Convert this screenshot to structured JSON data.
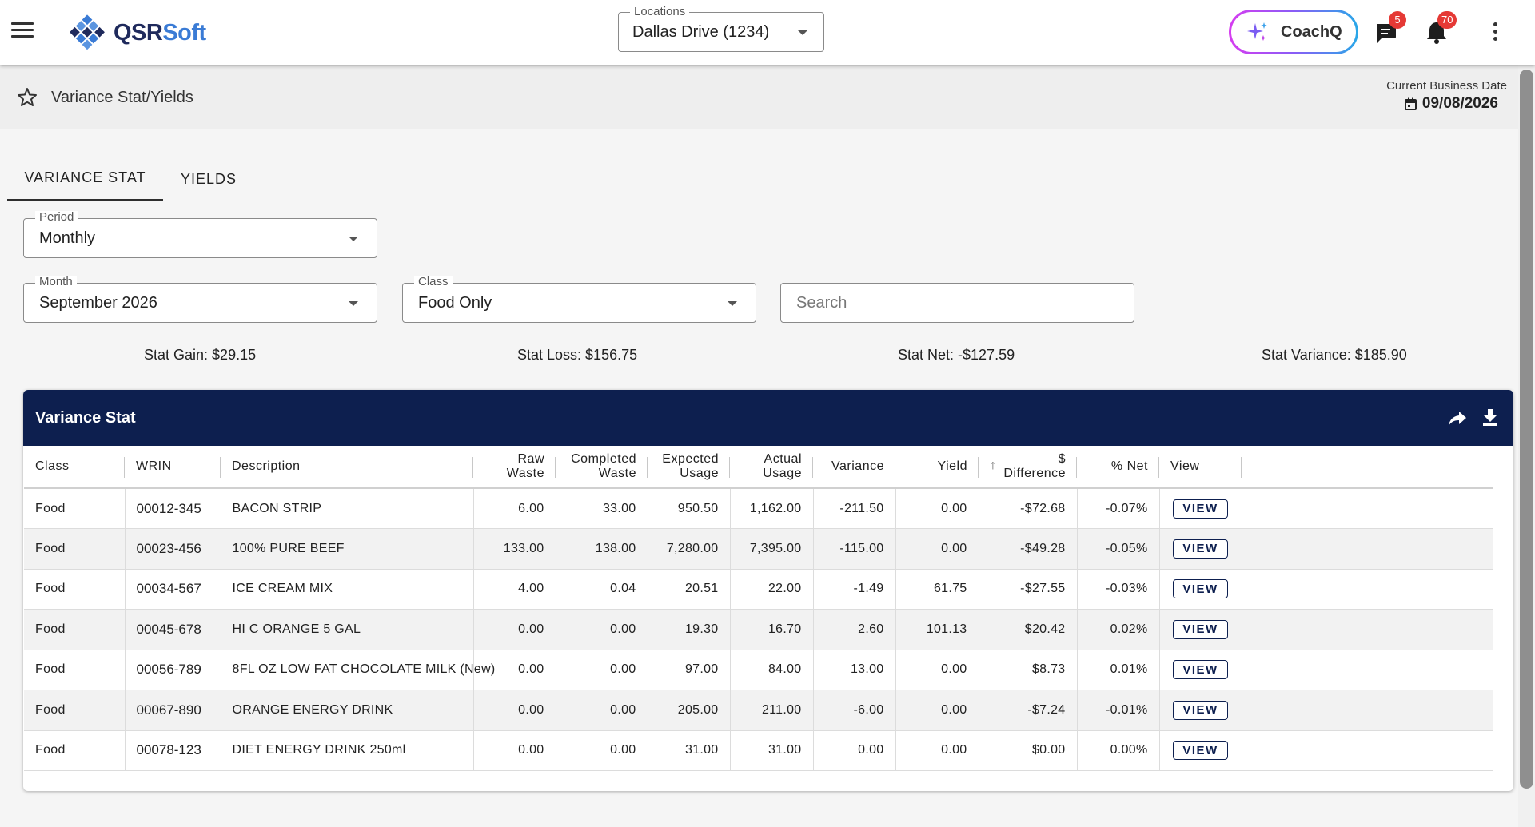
{
  "app": {
    "logo_part1": "QSR",
    "logo_part2": "Soft"
  },
  "header": {
    "locations_label": "Locations",
    "location_value": "Dallas Drive (1234)",
    "coachq_label": "CoachQ",
    "messages_count": "5",
    "notifications_count": "70"
  },
  "page": {
    "title": "Variance Stat/Yields",
    "business_date_label": "Current Business Date",
    "business_date": "09/08/2026"
  },
  "tabs": [
    {
      "label": "VARIANCE STAT",
      "active": true
    },
    {
      "label": "YIELDS",
      "active": false
    }
  ],
  "filters": {
    "period_label": "Period",
    "period_value": "Monthly",
    "month_label": "Month",
    "month_value": "September 2026",
    "class_label": "Class",
    "class_value": "Food Only",
    "search_placeholder": "Search"
  },
  "stats": {
    "gain": "Stat Gain: $29.15",
    "loss": "Stat Loss: $156.75",
    "net": "Stat Net: -$127.59",
    "variance": "Stat Variance: $185.90"
  },
  "table": {
    "title": "Variance Stat",
    "columns": {
      "class": "Class",
      "wrin": "WRIN",
      "description": "Description",
      "raw_waste": "Raw Waste",
      "completed_waste": "Completed Waste",
      "expected_usage": "Expected Usage",
      "actual_usage": "Actual Usage",
      "variance": "Variance",
      "yield": "Yield",
      "difference_symbol": "$",
      "difference": "Difference",
      "pct_net": "% Net",
      "view": "View"
    },
    "view_label": "VIEW",
    "rows": [
      {
        "class": "Food",
        "wrin": "00012-345",
        "description": "BACON STRIP",
        "raw_waste": "6.00",
        "completed_waste": "33.00",
        "expected_usage": "950.50",
        "actual_usage": "1,162.00",
        "variance": "-211.50",
        "yield": "0.00",
        "difference": "-$72.68",
        "pct_net": "-0.07%"
      },
      {
        "class": "Food",
        "wrin": "00023-456",
        "description": "100% PURE BEEF",
        "raw_waste": "133.00",
        "completed_waste": "138.00",
        "expected_usage": "7,280.00",
        "actual_usage": "7,395.00",
        "variance": "-115.00",
        "yield": "0.00",
        "difference": "-$49.28",
        "pct_net": "-0.05%"
      },
      {
        "class": "Food",
        "wrin": "00034-567",
        "description": "ICE CREAM MIX",
        "raw_waste": "4.00",
        "completed_waste": "0.04",
        "expected_usage": "20.51",
        "actual_usage": "22.00",
        "variance": "-1.49",
        "yield": "61.75",
        "difference": "-$27.55",
        "pct_net": "-0.03%"
      },
      {
        "class": "Food",
        "wrin": "00045-678",
        "description": "HI C ORANGE 5 GAL",
        "raw_waste": "0.00",
        "completed_waste": "0.00",
        "expected_usage": "19.30",
        "actual_usage": "16.70",
        "variance": "2.60",
        "yield": "101.13",
        "difference": "$20.42",
        "pct_net": "0.02%"
      },
      {
        "class": "Food",
        "wrin": "00056-789",
        "description": "8FL OZ LOW FAT CHOCOLATE MILK (New)",
        "raw_waste": "0.00",
        "completed_waste": "0.00",
        "expected_usage": "97.00",
        "actual_usage": "84.00",
        "variance": "13.00",
        "yield": "0.00",
        "difference": "$8.73",
        "pct_net": "0.01%"
      },
      {
        "class": "Food",
        "wrin": "00067-890",
        "description": "ORANGE ENERGY DRINK",
        "raw_waste": "0.00",
        "completed_waste": "0.00",
        "expected_usage": "205.00",
        "actual_usage": "211.00",
        "variance": "-6.00",
        "yield": "0.00",
        "difference": "-$7.24",
        "pct_net": "-0.01%"
      },
      {
        "class": "Food",
        "wrin": "00078-123",
        "description": "DIET ENERGY DRINK 250ml",
        "raw_waste": "0.00",
        "completed_waste": "0.00",
        "expected_usage": "31.00",
        "actual_usage": "31.00",
        "variance": "0.00",
        "yield": "0.00",
        "difference": "$0.00",
        "pct_net": "0.00%"
      }
    ]
  },
  "colors": {
    "navy": "#0d1f4f",
    "logo_blue": "#3a7bd5",
    "badge_red": "#e53935",
    "coachq_gradient": [
      "#d63cf0",
      "#8a5cf6",
      "#28a8e8"
    ]
  },
  "icons": {
    "menu": "hamburger-icon",
    "logo": "diamond-grid-logo",
    "coachq": "sparkle-icon",
    "messages": "chat-bubble-icon",
    "notifications": "bell-icon",
    "more": "kebab-icon",
    "favorite": "star-outline-icon",
    "date": "calendar-icon",
    "share": "share-arrow-icon",
    "download": "download-icon",
    "sort": "arrow-up-icon"
  }
}
